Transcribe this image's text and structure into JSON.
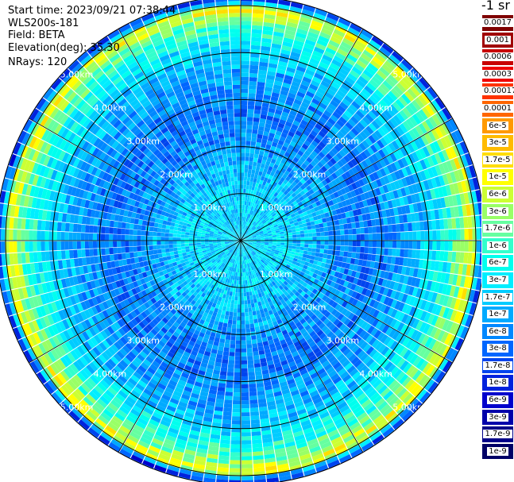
{
  "info": {
    "start_time": "Start time: 2023/09/21 07:38:44",
    "device": "WLS200s-181",
    "field": "Field: BETA",
    "elevation": "Elevation(deg): 35.30",
    "nrays": "NRays: 120"
  },
  "colorbar": {
    "title": "-1 sr",
    "labels": [
      "0.0017",
      "0.001",
      "0.0006",
      "0.0003",
      "0.00017",
      "0.0001",
      "6e-5",
      "3e-5",
      "1.7e-5",
      "1e-5",
      "6e-6",
      "3e-6",
      "1.7e-6",
      "1e-6",
      "6e-7",
      "3e-7",
      "1.7e-7",
      "1e-7",
      "6e-8",
      "3e-8",
      "1.7e-8",
      "1e-8",
      "6e-9",
      "3e-9",
      "1.7e-9",
      "1e-9"
    ],
    "colors": [
      "#7f0000",
      "#a00000",
      "#c80000",
      "#ee0000",
      "#ff3300",
      "#ff6600",
      "#ff9900",
      "#ffbb00",
      "#ffdd00",
      "#ffff00",
      "#ccff33",
      "#99ff66",
      "#66ffa0",
      "#33ffcc",
      "#00ffee",
      "#00eeff",
      "#00ccff",
      "#00aaff",
      "#0088ff",
      "#0066ff",
      "#0044ee",
      "#0022dd",
      "#0000cc",
      "#0000aa",
      "#000088",
      "#000066"
    ]
  },
  "chart_data": {
    "type": "heatmap",
    "projection": "polar (PPI)",
    "nrays": 120,
    "range_rings_km": [
      "1.00km",
      "2.00km",
      "3.00km",
      "4.00km",
      "5.00km"
    ],
    "max_range_km": 5.2,
    "spokes_deg": [
      0,
      30,
      60,
      90,
      120,
      150,
      180,
      210,
      240,
      270,
      300,
      330
    ],
    "colorscale": "log",
    "value_range": [
      1e-09,
      0.0017
    ],
    "radial_profile": {
      "range_km": [
        0.2,
        1.0,
        1.6,
        2.2,
        2.8,
        3.4,
        3.9,
        4.3,
        4.7,
        4.95,
        5.1
      ],
      "typical_value": [
        2e-07,
        2e-07,
        1.2e-07,
        6e-08,
        4e-08,
        8e-08,
        1.5e-07,
        4e-07,
        2e-06,
        1.2e-05,
        2e-08
      ]
    }
  }
}
